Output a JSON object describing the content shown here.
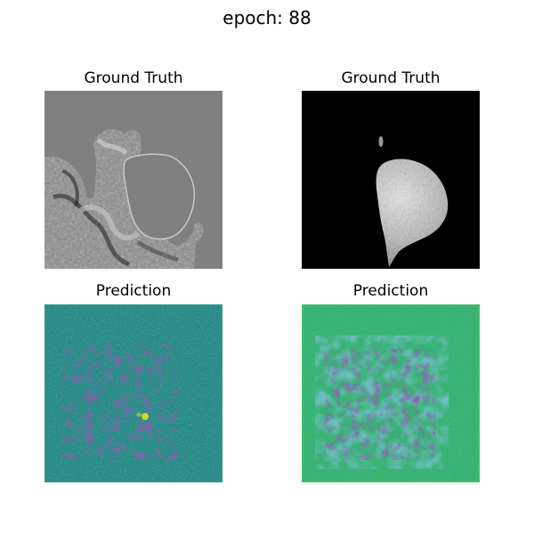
{
  "figure": {
    "suptitle": "epoch: 88"
  },
  "panels": [
    {
      "title": "Ground Truth",
      "colormap": "gray",
      "content": "mri-slice-with-masked-lesion"
    },
    {
      "title": "Ground Truth",
      "colormap": "gray",
      "content": "lesion-mask-intensity"
    },
    {
      "title": "Prediction",
      "colormap": "viridis",
      "content": "noisy-prediction-map"
    },
    {
      "title": "Prediction",
      "colormap": "viridis",
      "content": "noisy-prediction-map"
    }
  ],
  "colors": {
    "gray_background": "#808080",
    "black_background": "#000000",
    "viridis_teal": "#2a8a88",
    "viridis_green": "#38b276",
    "viridis_purple": "#3f1d6b",
    "viridis_yellow": "#d8e219"
  }
}
